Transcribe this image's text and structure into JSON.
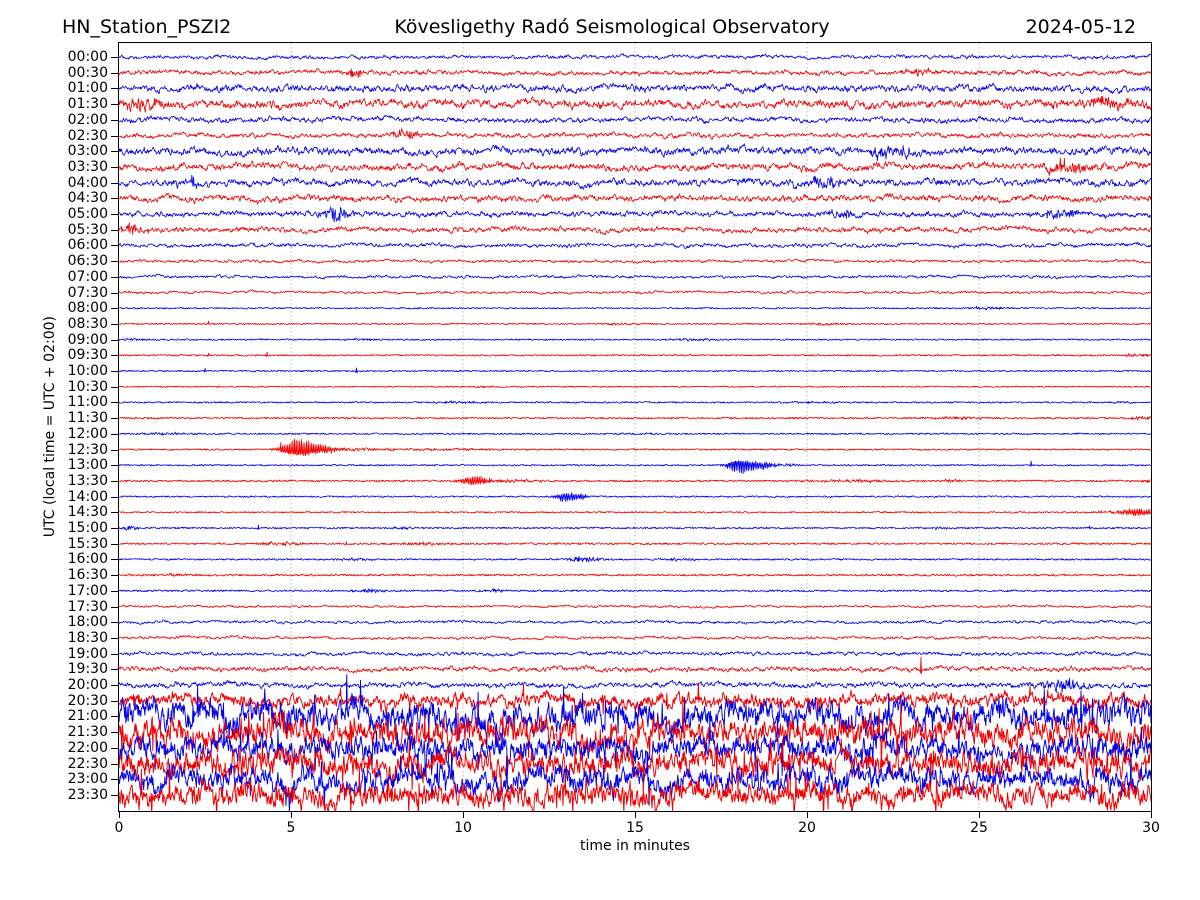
{
  "header": {
    "station": "HN_Station_PSZI2",
    "observatory": "Kövesligethy Radó Seismological Observatory",
    "date": "2024-05-12"
  },
  "axes": {
    "y_label": "UTC (local time = UTC + 02:00)",
    "x_label": "time in minutes",
    "x_range": [
      0,
      30
    ],
    "x_ticks": [
      {
        "label": "0",
        "min": 0
      },
      {
        "label": "5",
        "min": 5
      },
      {
        "label": "10",
        "min": 10
      },
      {
        "label": "15",
        "min": 15
      },
      {
        "label": "20",
        "min": 20
      },
      {
        "label": "25",
        "min": 25
      },
      {
        "label": "30",
        "min": 30
      }
    ],
    "grid_minutes": [
      5,
      10,
      15,
      20,
      25
    ],
    "grid_style": "dotted"
  },
  "colors": {
    "trace_blue": "#0000e6",
    "trace_red": "#ee0000",
    "grid": "#9b9b9b",
    "axis": "#000000",
    "background": "#ffffff"
  },
  "chart_data": {
    "type": "line",
    "subtype": "helicorder-seismogram",
    "minutes_per_row": 30,
    "row_interval": "00:30",
    "alternating_colors": [
      "blue",
      "red"
    ],
    "rows": [
      {
        "time": "00:00",
        "color": "blue",
        "amp": 2.2,
        "character": "micro",
        "events": []
      },
      {
        "time": "00:30",
        "color": "red",
        "amp": 2.8,
        "character": "micro",
        "events": [
          {
            "t": 6.8,
            "amp": 5,
            "dur": 0.25,
            "kind": "fuzz"
          },
          {
            "t": 23.3,
            "amp": 4,
            "dur": 0.3,
            "kind": "fuzz"
          }
        ]
      },
      {
        "time": "01:00",
        "color": "blue",
        "amp": 4.2,
        "character": "micro",
        "events": []
      },
      {
        "time": "01:30",
        "color": "red",
        "amp": 5.0,
        "character": "micro",
        "events": [
          {
            "t": 0.6,
            "amp": 7,
            "dur": 0.4,
            "kind": "fuzz"
          },
          {
            "t": 28.8,
            "amp": 6,
            "dur": 0.5,
            "kind": "fuzz"
          }
        ]
      },
      {
        "time": "02:00",
        "color": "blue",
        "amp": 3.2,
        "character": "micro",
        "events": []
      },
      {
        "time": "02:30",
        "color": "red",
        "amp": 2.8,
        "character": "micro",
        "events": [
          {
            "t": 8.3,
            "amp": 5,
            "dur": 0.3,
            "kind": "fuzz"
          }
        ]
      },
      {
        "time": "03:00",
        "color": "blue",
        "amp": 4.6,
        "character": "micro",
        "events": [
          {
            "t": 22.4,
            "amp": 7,
            "dur": 0.5,
            "kind": "fuzz"
          }
        ]
      },
      {
        "time": "03:30",
        "color": "red",
        "amp": 4.2,
        "character": "micro",
        "events": [
          {
            "t": 27.6,
            "amp": 7,
            "dur": 0.6,
            "kind": "fuzz"
          }
        ]
      },
      {
        "time": "04:00",
        "color": "blue",
        "amp": 4.2,
        "character": "micro",
        "events": [
          {
            "t": 2.1,
            "amp": 8,
            "dur": 0.15,
            "kind": "fuzz"
          },
          {
            "t": 20.4,
            "amp": 6,
            "dur": 0.4,
            "kind": "fuzz"
          }
        ]
      },
      {
        "time": "04:30",
        "color": "red",
        "amp": 3.8,
        "character": "micro",
        "events": []
      },
      {
        "time": "05:00",
        "color": "blue",
        "amp": 3.2,
        "character": "micro",
        "events": [
          {
            "t": 6.3,
            "amp": 8,
            "dur": 0.3,
            "kind": "fuzz"
          },
          {
            "t": 21.1,
            "amp": 6,
            "dur": 0.3,
            "kind": "fuzz"
          },
          {
            "t": 27.4,
            "amp": 6,
            "dur": 0.4,
            "kind": "fuzz"
          }
        ]
      },
      {
        "time": "05:30",
        "color": "red",
        "amp": 3.2,
        "character": "micro",
        "events": [
          {
            "t": 0.4,
            "amp": 6,
            "dur": 0.3,
            "kind": "fuzz"
          }
        ]
      },
      {
        "time": "06:00",
        "color": "blue",
        "amp": 2.2,
        "character": "micro",
        "events": []
      },
      {
        "time": "06:30",
        "color": "red",
        "amp": 1.7,
        "character": "micro",
        "events": []
      },
      {
        "time": "07:00",
        "color": "blue",
        "amp": 1.7,
        "character": "micro",
        "events": []
      },
      {
        "time": "07:30",
        "color": "red",
        "amp": 1.5,
        "character": "micro",
        "events": []
      },
      {
        "time": "08:00",
        "color": "blue",
        "amp": 0.65,
        "character": "quiet",
        "events": [
          {
            "t": 25.2,
            "amp": 1.6,
            "dur": 0.4,
            "kind": "fuzz"
          }
        ]
      },
      {
        "time": "08:30",
        "color": "red",
        "amp": 0.65,
        "character": "quiet",
        "events": [
          {
            "t": 2.6,
            "amp": 2.2,
            "kind": "spike"
          },
          {
            "t": 14.6,
            "amp": 1.4,
            "dur": 0.4,
            "kind": "fuzz"
          },
          {
            "t": 20.5,
            "amp": 1.2,
            "dur": 0.5,
            "kind": "fuzz"
          }
        ]
      },
      {
        "time": "09:00",
        "color": "blue",
        "amp": 0.65,
        "character": "quiet",
        "events": [
          {
            "t": 0.6,
            "amp": 1.2,
            "dur": 0.4,
            "kind": "fuzz"
          },
          {
            "t": 7.0,
            "amp": 1.2,
            "dur": 0.3,
            "kind": "fuzz"
          },
          {
            "t": 16.6,
            "amp": 1.5,
            "dur": 0.5,
            "kind": "fuzz"
          }
        ]
      },
      {
        "time": "09:30",
        "color": "red",
        "amp": 0.7,
        "character": "quiet",
        "events": [
          {
            "t": 2.6,
            "amp": 2.5,
            "kind": "spike"
          },
          {
            "t": 4.3,
            "amp": 3.2,
            "kind": "spike"
          },
          {
            "t": 29.6,
            "amp": 2.0,
            "dur": 0.3,
            "kind": "fuzz"
          }
        ]
      },
      {
        "time": "10:00",
        "color": "blue",
        "amp": 0.65,
        "character": "quiet",
        "events": [
          {
            "t": 2.5,
            "amp": 3.0,
            "kind": "spike"
          },
          {
            "t": 6.9,
            "amp": 3.5,
            "kind": "spike"
          }
        ]
      },
      {
        "time": "10:30",
        "color": "red",
        "amp": 0.6,
        "character": "quiet",
        "events": [
          {
            "t": 10.6,
            "amp": 1.0,
            "dur": 0.4,
            "kind": "fuzz"
          }
        ]
      },
      {
        "time": "11:00",
        "color": "blue",
        "amp": 0.7,
        "character": "quiet",
        "events": [
          {
            "t": 9.8,
            "amp": 1.2,
            "dur": 0.5,
            "kind": "fuzz"
          },
          {
            "t": 20.0,
            "amp": 1.2,
            "dur": 0.5,
            "kind": "fuzz"
          },
          {
            "t": 29.2,
            "amp": 1.3,
            "dur": 0.3,
            "kind": "fuzz"
          }
        ]
      },
      {
        "time": "11:30",
        "color": "red",
        "amp": 0.8,
        "character": "quiet",
        "events": [
          {
            "t": 24.5,
            "amp": 1.6,
            "dur": 0.5,
            "kind": "fuzz"
          },
          {
            "t": 29.7,
            "amp": 2.0,
            "dur": 0.25,
            "kind": "fuzz"
          }
        ]
      },
      {
        "time": "12:00",
        "color": "blue",
        "amp": 0.7,
        "character": "quiet",
        "events": [
          {
            "t": 1.5,
            "amp": 1.3,
            "dur": 0.6,
            "kind": "fuzz"
          },
          {
            "t": 15.0,
            "amp": 1.0,
            "dur": 0.5,
            "kind": "fuzz"
          }
        ]
      },
      {
        "time": "12:30",
        "color": "red",
        "amp": 0.7,
        "character": "quiet",
        "events": [
          {
            "t": 4.7,
            "amp": 4.0,
            "kind": "spike"
          },
          {
            "t": 5.15,
            "amp": 10,
            "dur": 0.3,
            "kind": "burst"
          },
          {
            "t": 5.75,
            "amp": 5.5,
            "dur": 0.45,
            "kind": "burst"
          },
          {
            "t": 7.0,
            "amp": 1.8,
            "dur": 0.8,
            "kind": "fuzz"
          },
          {
            "t": 9.5,
            "amp": 1.2,
            "dur": 0.8,
            "kind": "fuzz"
          }
        ]
      },
      {
        "time": "13:00",
        "color": "blue",
        "amp": 0.7,
        "character": "quiet",
        "events": [
          {
            "t": 18.0,
            "amp": 8,
            "dur": 0.22,
            "kind": "burst"
          },
          {
            "t": 18.55,
            "amp": 4.5,
            "dur": 0.35,
            "kind": "burst"
          },
          {
            "t": 19.3,
            "amp": 1.5,
            "dur": 0.5,
            "kind": "fuzz"
          },
          {
            "t": 26.5,
            "amp": 4.5,
            "kind": "spike"
          }
        ]
      },
      {
        "time": "13:30",
        "color": "red",
        "amp": 0.8,
        "character": "quiet",
        "events": [
          {
            "t": 10.35,
            "amp": 5.5,
            "dur": 0.3,
            "kind": "burst"
          },
          {
            "t": 11.3,
            "amp": 1.8,
            "dur": 0.7,
            "kind": "fuzz"
          },
          {
            "t": 21.5,
            "amp": 1.5,
            "dur": 1.0,
            "kind": "fuzz"
          },
          {
            "t": 24.2,
            "amp": 2.0,
            "dur": 0.2,
            "kind": "fuzz"
          },
          {
            "t": 29.9,
            "amp": 2.5,
            "dur": 0.1,
            "kind": "fuzz"
          }
        ]
      },
      {
        "time": "14:00",
        "color": "blue",
        "amp": 0.7,
        "character": "quiet",
        "events": [
          {
            "t": 12.95,
            "amp": 5.0,
            "dur": 0.18,
            "kind": "burst"
          },
          {
            "t": 13.35,
            "amp": 3.5,
            "dur": 0.2,
            "kind": "burst"
          }
        ]
      },
      {
        "time": "14:30",
        "color": "red",
        "amp": 0.7,
        "character": "quiet",
        "events": [
          {
            "t": 28.6,
            "amp": 1.5,
            "dur": 0.3,
            "kind": "fuzz"
          },
          {
            "t": 29.6,
            "amp": 4.5,
            "dur": 0.4,
            "kind": "burst"
          }
        ]
      },
      {
        "time": "15:00",
        "color": "blue",
        "amp": 0.75,
        "character": "quiet",
        "events": [
          {
            "t": 0.3,
            "amp": 2.2,
            "dur": 0.25,
            "kind": "fuzz"
          },
          {
            "t": 4.05,
            "amp": 3.0,
            "kind": "spike"
          },
          {
            "t": 8.3,
            "amp": 1.5,
            "dur": 0.4,
            "kind": "fuzz"
          },
          {
            "t": 23.7,
            "amp": 1.5,
            "dur": 0.3,
            "kind": "fuzz"
          },
          {
            "t": 28.2,
            "amp": 1.5,
            "kind": "spike"
          }
        ]
      },
      {
        "time": "15:30",
        "color": "red",
        "amp": 0.85,
        "character": "quiet",
        "events": [
          {
            "t": 4.7,
            "amp": 2.0,
            "dur": 0.5,
            "kind": "fuzz"
          },
          {
            "t": 6.6,
            "amp": 2.5,
            "kind": "spike"
          },
          {
            "t": 8.9,
            "amp": 1.8,
            "dur": 0.4,
            "kind": "fuzz"
          }
        ]
      },
      {
        "time": "16:00",
        "color": "blue",
        "amp": 0.75,
        "character": "quiet",
        "events": [
          {
            "t": 6.8,
            "amp": 1.4,
            "dur": 0.4,
            "kind": "fuzz"
          },
          {
            "t": 13.5,
            "amp": 2.6,
            "dur": 0.45,
            "kind": "fuzz"
          },
          {
            "t": 16.3,
            "amp": 1.4,
            "dur": 0.4,
            "kind": "fuzz"
          }
        ]
      },
      {
        "time": "16:30",
        "color": "red",
        "amp": 0.85,
        "character": "quiet",
        "events": [
          {
            "t": 1.6,
            "amp": 1.6,
            "dur": 0.5,
            "kind": "fuzz"
          }
        ]
      },
      {
        "time": "17:00",
        "color": "blue",
        "amp": 0.8,
        "character": "quiet",
        "events": [
          {
            "t": 7.3,
            "amp": 2.4,
            "dur": 0.35,
            "kind": "fuzz"
          },
          {
            "t": 10.9,
            "amp": 1.6,
            "dur": 0.3,
            "kind": "fuzz"
          }
        ]
      },
      {
        "time": "17:30",
        "color": "red",
        "amp": 1.4,
        "character": "micro",
        "events": []
      },
      {
        "time": "18:00",
        "color": "blue",
        "amp": 1.7,
        "character": "micro",
        "events": []
      },
      {
        "time": "18:30",
        "color": "red",
        "amp": 1.7,
        "character": "micro",
        "events": []
      },
      {
        "time": "19:00",
        "color": "blue",
        "amp": 2.1,
        "character": "micro",
        "events": []
      },
      {
        "time": "19:30",
        "color": "red",
        "amp": 2.8,
        "character": "micro",
        "events": [
          {
            "t": 23.3,
            "amp": 13,
            "kind": "spike"
          }
        ]
      },
      {
        "time": "20:00",
        "color": "blue",
        "amp": 3.2,
        "character": "micro",
        "events": [
          {
            "t": 27.4,
            "amp": 8,
            "dur": 0.4,
            "kind": "fuzz"
          }
        ]
      },
      {
        "time": "20:30",
        "color": "red",
        "amp": 6.0,
        "character": "noisy",
        "events": []
      },
      {
        "time": "21:00",
        "color": "blue",
        "amp": 13,
        "character": "noisy",
        "events": []
      },
      {
        "time": "21:30",
        "color": "red",
        "amp": 13,
        "character": "noisy",
        "events": []
      },
      {
        "time": "22:00",
        "color": "blue",
        "amp": 11,
        "character": "noisy",
        "events": []
      },
      {
        "time": "22:30",
        "color": "red",
        "amp": 12,
        "character": "noisy",
        "events": []
      },
      {
        "time": "23:00",
        "color": "blue",
        "amp": 11,
        "character": "noisy",
        "events": []
      },
      {
        "time": "23:30",
        "color": "red",
        "amp": 11,
        "character": "noisy",
        "events": []
      }
    ]
  }
}
